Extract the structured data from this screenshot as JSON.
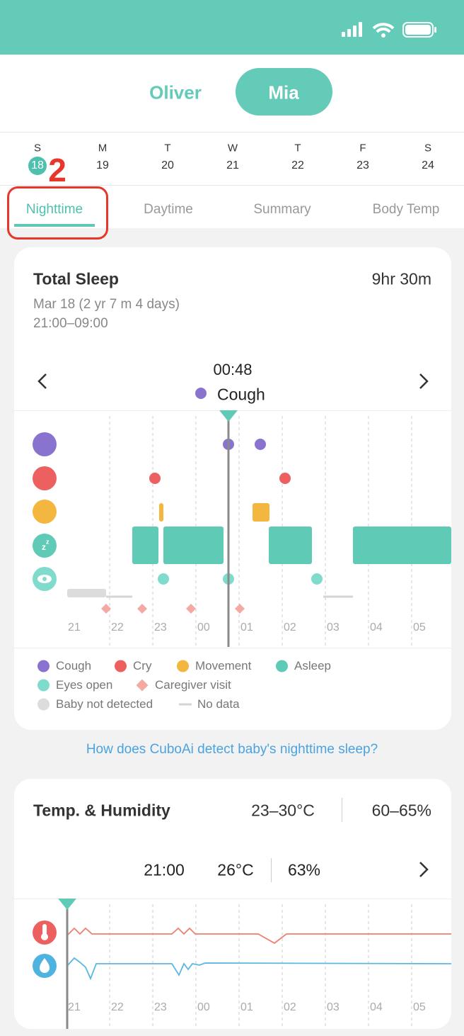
{
  "profiles": {
    "items": [
      "Oliver",
      "Mia"
    ],
    "selected": 1
  },
  "week": {
    "days": [
      {
        "letter": "S",
        "date": "18"
      },
      {
        "letter": "M",
        "date": "19"
      },
      {
        "letter": "T",
        "date": "20"
      },
      {
        "letter": "W",
        "date": "21"
      },
      {
        "letter": "T",
        "date": "22"
      },
      {
        "letter": "F",
        "date": "23"
      },
      {
        "letter": "S",
        "date": "24"
      }
    ],
    "selected": 0
  },
  "annotation": "2",
  "tabs": {
    "items": [
      "Nighttime",
      "Daytime",
      "Summary",
      "Body Temp"
    ],
    "selected": 0
  },
  "sleep_card": {
    "title": "Total Sleep",
    "total": "9hr 30m",
    "date": "Mar 18 (2 yr 7 m 4 days)",
    "range": "21:00–09:00",
    "cursor_time": "00:48",
    "cursor_event": "Cough",
    "hours": [
      "21",
      "22",
      "23",
      "00",
      "01",
      "02",
      "03",
      "04",
      "05"
    ],
    "legend": [
      {
        "name": "Cough",
        "color": "#8a73cf",
        "shape": "dot"
      },
      {
        "name": "Cry",
        "color": "#ec6060",
        "shape": "dot"
      },
      {
        "name": "Movement",
        "color": "#f3b63f",
        "shape": "dot"
      },
      {
        "name": "Asleep",
        "color": "#5fcab6",
        "shape": "dot"
      },
      {
        "name": "Eyes open",
        "color": "#7fdccd",
        "shape": "dot"
      },
      {
        "name": "Caregiver visit",
        "color": "#f4a9a3",
        "shape": "diamond"
      },
      {
        "name": "Baby not detected",
        "color": "#dcdcdc",
        "shape": "dot"
      },
      {
        "name": "No data",
        "color": "#d5d5d5",
        "shape": "dash"
      }
    ]
  },
  "link": "How does CuboAi detect baby's nighttime sleep?",
  "temp_card": {
    "title": "Temp. & Humidity",
    "temp_range": "23–30°C",
    "humidity_range": "60–65%",
    "cursor_time": "21:00",
    "cursor_temp": "26°C",
    "cursor_humidity": "63%",
    "hours": [
      "21",
      "22",
      "23",
      "00",
      "01",
      "02",
      "03",
      "04",
      "05"
    ]
  }
}
